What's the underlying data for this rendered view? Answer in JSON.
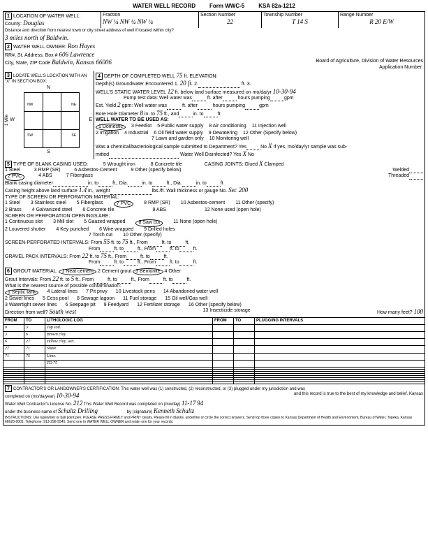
{
  "header": {
    "title": "WATER WELL RECORD",
    "form": "Form WWC-5",
    "ksa": "KSA 82a-1212"
  },
  "sec1": {
    "label": "LOCATION OF WATER WELL:",
    "county_label": "County:",
    "county": "Douglas",
    "fraction": "Fraction",
    "frac_val": "NW ¼ NW ¼ NW ¼",
    "section": "Section Number",
    "section_val": "22",
    "township": "Township Number",
    "township_val": "T 14 S",
    "range": "Range Number",
    "range_val": "R 20 E/W",
    "dist_label": "Distance and direction from nearest town or city street address of well if located within city?",
    "dist": "3 miles north of Baldwin."
  },
  "sec2": {
    "label": "WATER WELL OWNER:",
    "owner": "Ron Hayes",
    "addr_label": "RR#, St. Address, Box #",
    "addr": "606 Lawrence",
    "city_label": "City, State, ZIP Code",
    "city": "Baldwin, Kansas 66006",
    "board": "Board of Agriculture, Division of Water Resources",
    "app": "Application Number:"
  },
  "sec3": {
    "label": "LOCATE WELL'S LOCATION WITH AN \"X\" IN SECTION BOX:",
    "n": "N",
    "s": "S",
    "e": "E",
    "w": "W",
    "nw": "NW",
    "ne": "NE",
    "sw": "SW",
    "se": "SE",
    "mile": "1 Mile"
  },
  "sec4": {
    "depth_label": "DEPTH OF COMPLETED WELL",
    "depth": "75",
    "ft": "ft.",
    "elev": "ELEVATION:",
    "gw_label": "Depth(s) Groundwater Encountered",
    "gw1": "1.",
    "gw1v": "20 ft.",
    "gw2": "2.",
    "gw3": "ft. 3.",
    "swl_label": "WELL'S STATIC WATER LEVEL",
    "swl": "12",
    "swl_text": "ft. below land surface measured on mo/da/yr",
    "swl_date": "10-30-94",
    "pump": "Pump test data:",
    "ww1": "Well water was",
    "after": "ft. after",
    "hours": "hours pumping",
    "gpm": "gpm",
    "yield": "Est. Yield",
    "yield_v": "2",
    "bore": "Bore Hole Diameter",
    "bore_v": "8",
    "into": "in. to",
    "to75": "75",
    "and": "ft., and",
    "use_label": "WELL WATER TO BE USED AS:",
    "u1": "1 Domestic",
    "u2": "2 Irrigation",
    "u3": "3 Feedlot",
    "u4": "4 Industrial",
    "u5": "5 Public water supply",
    "u6": "6 Oil field water supply",
    "u7": "7 Lawn and garden only",
    "u8": "8 Air conditioning",
    "u9": "9 Dewatering",
    "u10": "10 Monitoring well",
    "u11": "11 Injection well",
    "u12": "12 Other (Specify below)",
    "chem": "Was a chemical/bacteriological sample submitted to Department? Yes",
    "no": "No",
    "x": "X",
    "ifyes": "If yes, mo/day/yr sample was sub-",
    "mitted": "mitted",
    "disinfect": "Water Well Disinfected? Yes",
    "dx": "X"
  },
  "sec5": {
    "label": "TYPE OF BLANK CASING USED:",
    "c1": "1 Steel",
    "c2": "2 PVC",
    "c3": "3 RMP (SR)",
    "c4": "4 ABS",
    "c5": "5 Wrought iron",
    "c6": "6 Asbestos-Cement",
    "c7": "7 Fiberglass",
    "c8": "8 Concrete tile",
    "c9": "9 Other (specify below)",
    "joints": "CASING JOINTS: Glued",
    "jx": "X",
    "clamped": "Clamped",
    "welded": "Welded",
    "threaded": "Threaded",
    "bcd": "Blank casing diameter",
    "chals": "Casing height above land surface",
    "chals_v": "1.4",
    "weight": "in., weight",
    "wall": "lbs./ft. Wall thickness or gauge No.",
    "wall_v": "Sec 200",
    "screen_label": "TYPE OF SCREEN OR PERFORATION MATERIAL:",
    "s1": "1 Steel",
    "s2": "2 Brass",
    "s3": "3 Stainless steel",
    "s4": "4 Galvanized steel",
    "s5": "5 Fiberglass",
    "s6": "6 Concrete tile",
    "s7": "7 PVC",
    "s8": "8 RMP (SR)",
    "s9": "9 ABS",
    "s10": "10 Asbestos-cement",
    "s11": "11 Other (specify)",
    "s12": "12 None used (open hole)",
    "open_label": "SCREEN OR PERFORATION OPENINGS ARE:",
    "o1": "1 Continuous slot",
    "o2": "2 Louvered shutter",
    "o3": "3 Mill slot",
    "o4": "4 Key punched",
    "o5": "5 Gauzed wrapped",
    "o6": "6 Wire wrapped",
    "o7": "7 Torch cut",
    "o8": "8 Saw cut",
    "o9": "9 Drilled holes",
    "o10": "10 Other (specify)",
    "o11": "11 None (open hole)",
    "spi": "SCREEN-PERFORATED INTERVALS:",
    "from": "From",
    "to": "ft. to",
    "spi_from": "55",
    "spi_to": "75",
    "gpi": "GRAVEL PACK INTERVALS:",
    "gpi_from": "22",
    "gpi_to": "75"
  },
  "sec6": {
    "label": "GROUT MATERIAL:",
    "g1": "1 Neat cement",
    "g2": "2 Cement grout",
    "g3": "3 Bentonite",
    "g4": "4 Other",
    "gi": "Grout Intervals: From",
    "gi_from": "22",
    "gi_to": "5",
    "gi_text": "ft. to",
    "contam": "What is the nearest source of possible contamination:",
    "p1": "1 Septic tank",
    "p2": "2 Sewer lines",
    "p3": "3 Watertight sewer lines",
    "p4": "4 Lateral lines",
    "p5": "5 Cess pool",
    "p6": "6 Seepage pit",
    "p7": "7 Pit privy",
    "p8": "8 Sewage lagoon",
    "p9": "9 Feedyard",
    "p10": "10 Livestock pens",
    "p11": "11 Fuel storage",
    "p12": "12 Fertilizer storage",
    "p13": "13 Insecticide storage",
    "p14": "14 Abandoned water well",
    "p15": "15 Oil well/Gas well",
    "p16": "16 Other (specify below)",
    "dir": "Direction from well?",
    "dir_v": "South west",
    "feet": "How many feet?",
    "feet_v": "100"
  },
  "log": {
    "h_from": "FROM",
    "h_to": "TO",
    "h_lith": "LITHOLOGIC LOG",
    "h_plug": "PLUGGING INTERVALS",
    "rows": [
      {
        "from": "0",
        "to": "3",
        "lith": "Top soil."
      },
      {
        "from": "3",
        "to": "6",
        "lith": "Brown clay."
      },
      {
        "from": "6",
        "to": "27",
        "lith": "Yellow clay, wet."
      },
      {
        "from": "27",
        "to": "71",
        "lith": "Shale."
      },
      {
        "from": "71",
        "to": "75",
        "lith": "Lime."
      },
      {
        "from": "",
        "to": "",
        "lith": "TD 75"
      }
    ]
  },
  "sec7": {
    "label": "CONTRACTOR'S OR LANDOWNER'S CERTIFICATION: This water well was (1) constructed, (2) reconstructed, or (3) plugged under my jurisdiction and was",
    "comp_label": "completed on (mo/da/year)",
    "comp": "10-30-94",
    "record": "and this record is true to the best of my knowledge and belief. Kansas",
    "lic": "Water Well Contractor's License No.",
    "lic_v": "212",
    "rec_comp": "This Water Well Record was completed on (mo/day)",
    "rec_date": "11-17",
    "yr": "94",
    "biz": "under the business name of",
    "biz_v": "Schultz Drilling",
    "sig": "by (signature)",
    "sig_v": "Kenneth Schultz",
    "inst": "INSTRUCTIONS: Use typewriter or ball point pen. PLEASE PRESS FIRMLY and PRINT clearly. Please fill in blanks, underline or circle the correct answers. Send top three copies to Kansas Department of Health and Environment, Bureau of Water, Topeka, Kansas 66620-0001. Telephone: 913-296-5545. Send one to WATER WELL OWNER and retain one for your records."
  }
}
